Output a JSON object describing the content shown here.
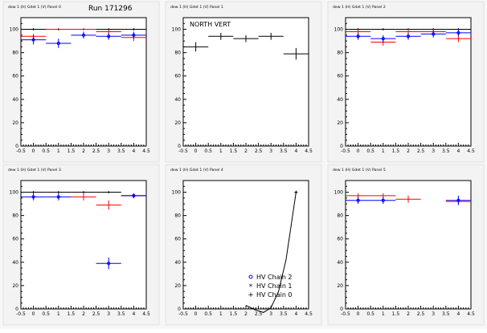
{
  "page": {
    "run_label": "Run 171296"
  },
  "legend": {
    "entries": [
      {
        "marker": "o",
        "label": "HV Chain 2",
        "color": "#0000ff"
      },
      {
        "marker": "*",
        "label": "HV Chain 1",
        "color": "#ff0000"
      },
      {
        "marker": "+",
        "label": "HV Chain 0",
        "color": "#000000"
      }
    ]
  },
  "chart_data": [
    {
      "type": "scatter",
      "panel_title": "dew 1 (H) Gdet 1 (V) Panel 0",
      "annotation": "",
      "xlim": [
        -0.5,
        4.5
      ],
      "ylim": [
        0,
        110
      ],
      "xticks": [
        "-0.5",
        "0",
        "0.5",
        "1",
        "1.5",
        "2",
        "2.5",
        "3",
        "3.5",
        "4",
        "4.5"
      ],
      "yticks": [
        "0",
        "20",
        "40",
        "60",
        "80",
        "100"
      ],
      "series": [
        {
          "color": "#000000",
          "points": [
            {
              "x": 0,
              "y": 100,
              "xe": 0.5,
              "ye": 1
            },
            {
              "x": 1,
              "y": 100,
              "xe": 0.5,
              "ye": 1
            },
            {
              "x": 2,
              "y": 100,
              "xe": 0.5,
              "ye": 1
            },
            {
              "x": 3,
              "y": 100,
              "xe": 0.5,
              "ye": 1
            },
            {
              "x": 4,
              "y": 100,
              "xe": 0.5,
              "ye": 1
            }
          ]
        },
        {
          "color": "#ff0000",
          "points": [
            {
              "x": 0,
              "y": 94,
              "xe": 0.5,
              "ye": 2
            },
            {
              "x": 1,
              "y": 100,
              "xe": 0.5,
              "ye": 1
            },
            {
              "x": 2,
              "y": 100,
              "xe": 0.5,
              "ye": 1
            },
            {
              "x": 3,
              "y": 98,
              "xe": 0.5,
              "ye": 2
            },
            {
              "x": 4,
              "y": 93,
              "xe": 0.5,
              "ye": 3
            }
          ]
        },
        {
          "color": "#0000ff",
          "points": [
            {
              "x": 0,
              "y": 91,
              "xe": 0.5,
              "ye": 4
            },
            {
              "x": 1,
              "y": 88,
              "xe": 0.5,
              "ye": 4
            },
            {
              "x": 2,
              "y": 95,
              "xe": 0.5,
              "ye": 3
            },
            {
              "x": 3,
              "y": 94,
              "xe": 0.5,
              "ye": 3
            },
            {
              "x": 4,
              "y": 95,
              "xe": 0.5,
              "ye": 3
            }
          ]
        }
      ]
    },
    {
      "type": "scatter",
      "panel_title": "dew 1 (H) Gdet 1 (V) Panel 1",
      "annotation": "NORTH VERT",
      "xlim": [
        -0.5,
        4.5
      ],
      "ylim": [
        0,
        110
      ],
      "xticks": [
        "-0.5",
        "0",
        "0.5",
        "1",
        "1.5",
        "2",
        "2.5",
        "3",
        "3.5",
        "4",
        "4.5"
      ],
      "yticks": [
        "0",
        "20",
        "40",
        "60",
        "80",
        "100"
      ],
      "series": [
        {
          "color": "#000000",
          "points": [
            {
              "x": 0,
              "y": 85,
              "xe": 0.5,
              "ye": 4
            },
            {
              "x": 1,
              "y": 94,
              "xe": 0.5,
              "ye": 3
            },
            {
              "x": 2,
              "y": 92,
              "xe": 0.5,
              "ye": 3
            },
            {
              "x": 3,
              "y": 94,
              "xe": 0.5,
              "ye": 3
            },
            {
              "x": 4,
              "y": 79,
              "xe": 0.5,
              "ye": 5
            }
          ]
        }
      ]
    },
    {
      "type": "scatter",
      "panel_title": "dew 1 (H) Gdet 1 (V) Panel 2",
      "annotation": "",
      "xlim": [
        -0.5,
        4.5
      ],
      "ylim": [
        0,
        110
      ],
      "xticks": [
        "-0.5",
        "0",
        "0.5",
        "1",
        "1.5",
        "2",
        "2.5",
        "3",
        "3.5",
        "4",
        "4.5"
      ],
      "yticks": [
        "0",
        "20",
        "40",
        "60",
        "80",
        "100"
      ],
      "series": [
        {
          "color": "#000000",
          "points": [
            {
              "x": 0,
              "y": 100,
              "xe": 0.5,
              "ye": 1
            },
            {
              "x": 1,
              "y": 100,
              "xe": 0.5,
              "ye": 1
            },
            {
              "x": 2,
              "y": 100,
              "xe": 0.5,
              "ye": 1
            },
            {
              "x": 3,
              "y": 100,
              "xe": 0.5,
              "ye": 1
            },
            {
              "x": 4,
              "y": 100,
              "xe": 0.5,
              "ye": 1
            }
          ]
        },
        {
          "color": "#ff0000",
          "points": [
            {
              "x": 0,
              "y": 98,
              "xe": 0.5,
              "ye": 2
            },
            {
              "x": 1,
              "y": 89,
              "xe": 0.5,
              "ye": 3
            },
            {
              "x": 2,
              "y": 98,
              "xe": 0.5,
              "ye": 2
            },
            {
              "x": 3,
              "y": 98,
              "xe": 0.5,
              "ye": 2
            },
            {
              "x": 4,
              "y": 92,
              "xe": 0.5,
              "ye": 3
            }
          ]
        },
        {
          "color": "#0000ff",
          "points": [
            {
              "x": 0,
              "y": 94,
              "xe": 0.5,
              "ye": 3
            },
            {
              "x": 1,
              "y": 92,
              "xe": 0.5,
              "ye": 3
            },
            {
              "x": 2,
              "y": 94,
              "xe": 0.5,
              "ye": 3
            },
            {
              "x": 3,
              "y": 96,
              "xe": 0.5,
              "ye": 3
            },
            {
              "x": 4,
              "y": 97,
              "xe": 0.5,
              "ye": 3
            }
          ]
        }
      ]
    },
    {
      "type": "scatter",
      "panel_title": "dew 1 (H) Gdet 1 (V) Panel 3",
      "annotation": "",
      "xlim": [
        -0.5,
        4.5
      ],
      "ylim": [
        0,
        110
      ],
      "xticks": [
        "-0.5",
        "0",
        "0.5",
        "1",
        "1.5",
        "2",
        "2.5",
        "3",
        "3.5",
        "4",
        "4.5"
      ],
      "yticks": [
        "0",
        "20",
        "40",
        "60",
        "80",
        "100"
      ],
      "series": [
        {
          "color": "#000000",
          "points": [
            {
              "x": 0,
              "y": 100,
              "xe": 0.5,
              "ye": 1
            },
            {
              "x": 1,
              "y": 100,
              "xe": 0.5,
              "ye": 1
            },
            {
              "x": 2,
              "y": 100,
              "xe": 0.5,
              "ye": 1
            },
            {
              "x": 3,
              "y": 100,
              "xe": 0.5,
              "ye": 1
            },
            {
              "x": 4,
              "y": 97,
              "xe": 0.5,
              "ye": 2
            }
          ]
        },
        {
          "color": "#ff0000",
          "points": [
            {
              "x": 2,
              "y": 96,
              "xe": 0.5,
              "ye": 3
            },
            {
              "x": 3,
              "y": 89,
              "xe": 0.5,
              "ye": 4
            },
            {
              "x": 4,
              "y": 97,
              "xe": 0.5,
              "ye": 2
            }
          ]
        },
        {
          "color": "#0000ff",
          "points": [
            {
              "x": 0,
              "y": 96,
              "xe": 0.5,
              "ye": 3
            },
            {
              "x": 1,
              "y": 96,
              "xe": 0.5,
              "ye": 3
            },
            {
              "x": 3,
              "y": 39,
              "xe": 0.5,
              "ye": 5
            },
            {
              "x": 4,
              "y": 97,
              "xe": 0.5,
              "ye": 2
            }
          ]
        }
      ]
    },
    {
      "type": "line",
      "panel_title": "dew 1 (H) Gdet 1 (V) Panel 4",
      "annotation": "",
      "xlim": [
        -0.5,
        4.5
      ],
      "ylim": [
        0,
        110
      ],
      "xticks": [
        "-0.5",
        "0",
        "0.5",
        "1",
        "1.5",
        "2",
        "2.5",
        "3",
        "3.5",
        "4",
        "4.5"
      ],
      "yticks": [
        "0",
        "20",
        "40",
        "60",
        "80",
        "100"
      ],
      "curve": {
        "color": "#000000",
        "x": [
          2.0,
          2.4,
          2.7,
          3.0,
          3.3,
          3.6,
          4.0
        ],
        "y": [
          3,
          -1,
          -3,
          1,
          15,
          42,
          100
        ]
      },
      "curve_marker": {
        "x": 4,
        "y": 100
      },
      "show_legend": true
    },
    {
      "type": "scatter",
      "panel_title": "dew 1 (H) Gdet 1 (V) Panel 5",
      "annotation": "",
      "xlim": [
        -0.5,
        4.5
      ],
      "ylim": [
        0,
        110
      ],
      "xticks": [
        "-0.5",
        "0",
        "0.5",
        "1",
        "1.5",
        "2",
        "2.5",
        "3",
        "3.5",
        "4",
        "4.5"
      ],
      "yticks": [
        "0",
        "20",
        "40",
        "60",
        "80",
        "100"
      ],
      "series": [
        {
          "color": "#ff0000",
          "points": [
            {
              "x": 0,
              "y": 97,
              "xe": 0.5,
              "ye": 2
            },
            {
              "x": 1,
              "y": 97,
              "xe": 0.5,
              "ye": 2
            },
            {
              "x": 2,
              "y": 94,
              "xe": 0.5,
              "ye": 3
            },
            {
              "x": 4,
              "y": 92,
              "xe": 0.5,
              "ye": 3
            }
          ]
        },
        {
          "color": "#0000ff",
          "points": [
            {
              "x": 0,
              "y": 93,
              "xe": 0.5,
              "ye": 3
            },
            {
              "x": 1,
              "y": 93,
              "xe": 0.5,
              "ye": 3
            },
            {
              "x": 4,
              "y": 93,
              "xe": 0.5,
              "ye": 4
            }
          ]
        }
      ]
    }
  ]
}
